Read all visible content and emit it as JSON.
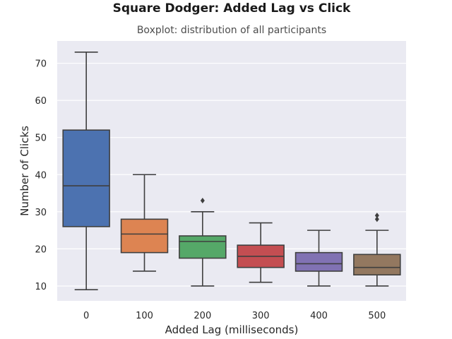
{
  "chart_data": {
    "type": "boxplot",
    "title": "Square Dodger: Added Lag vs Click",
    "subtitle": "Boxplot: distribution of all participants",
    "xlabel": "Added Lag (milliseconds)",
    "ylabel": "Number of Clicks",
    "ylim": [
      6,
      76
    ],
    "yticks": [
      10,
      20,
      30,
      40,
      50,
      60,
      70
    ],
    "grid": true,
    "categories": [
      "0",
      "100",
      "200",
      "300",
      "400",
      "500"
    ],
    "boxes": [
      {
        "category": "0",
        "min": 9,
        "q1": 26,
        "median": 37,
        "q3": 52,
        "max": 73,
        "outliers": [],
        "color": "#4c72b0"
      },
      {
        "category": "100",
        "min": 14,
        "q1": 19,
        "median": 24,
        "q3": 28,
        "max": 40,
        "outliers": [],
        "color": "#dd8452"
      },
      {
        "category": "200",
        "min": 10,
        "q1": 17.5,
        "median": 22,
        "q3": 23.5,
        "max": 30,
        "outliers": [
          33
        ],
        "color": "#55a868"
      },
      {
        "category": "300",
        "min": 11,
        "q1": 15,
        "median": 18,
        "q3": 21,
        "max": 27,
        "outliers": [],
        "color": "#c44e52"
      },
      {
        "category": "400",
        "min": 10,
        "q1": 14,
        "median": 16,
        "q3": 19,
        "max": 25,
        "outliers": [],
        "color": "#8172b3"
      },
      {
        "category": "500",
        "min": 10,
        "q1": 13,
        "median": 15,
        "q3": 18.5,
        "max": 25,
        "outliers": [
          28,
          29
        ],
        "color": "#937860"
      }
    ]
  }
}
